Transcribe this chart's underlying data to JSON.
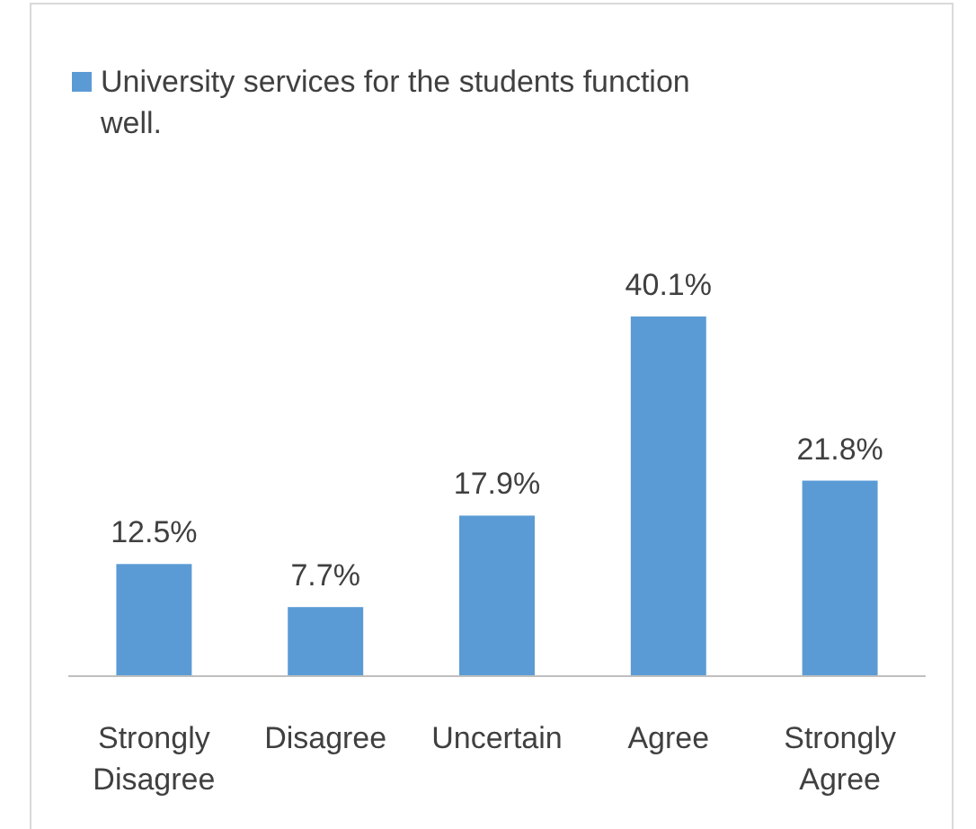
{
  "chart_data": {
    "type": "bar",
    "categories": [
      "Strongly Disagree",
      "Disagree",
      "Uncertain",
      "Agree",
      "Strongly Agree"
    ],
    "series": [
      {
        "name": "University services for the students function well.",
        "color": "#5b9bd5",
        "values": [
          12.5,
          7.7,
          17.9,
          40.1,
          21.8
        ],
        "value_labels": [
          "12.5%",
          "7.7%",
          "17.9%",
          "40.1%",
          "21.8%"
        ]
      }
    ],
    "legend": "top left"
  }
}
